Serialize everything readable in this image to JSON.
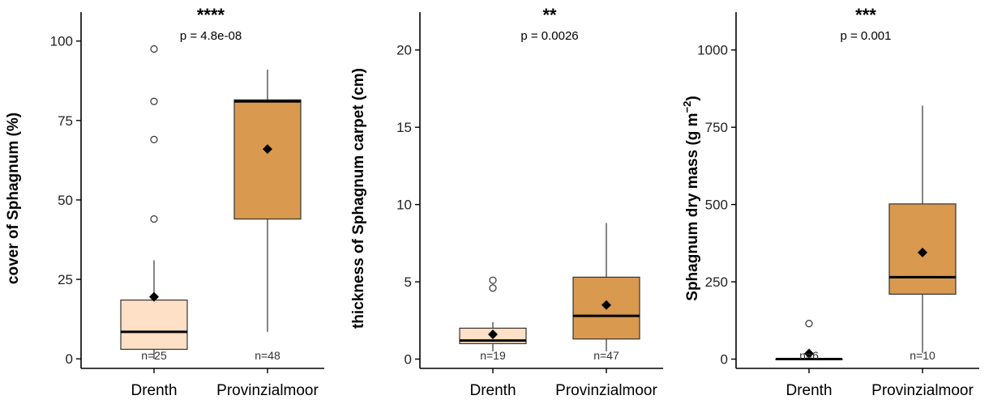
{
  "colors": {
    "drenth": "#fde0c5",
    "provinzialmoor": "#d9994f",
    "stroke": "#333333",
    "median": "#000000"
  },
  "chart_data": [
    {
      "type": "box",
      "ylabel": "cover of Sphagnum (%)",
      "ylabel_parts": [
        "cover of Sphagnum (%)"
      ],
      "ylim": [
        -3,
        104
      ],
      "yticks": [
        0,
        25,
        50,
        75,
        100
      ],
      "significance": "****",
      "p_label": "p = 4.8e-08",
      "categories": [
        "Drenth",
        "Provinzialmoor"
      ],
      "boxes": [
        {
          "name": "Drenth",
          "color_key": "drenth",
          "q1": 3,
          "median": 8.5,
          "q3": 18.5,
          "whisker_low": 0,
          "whisker_high": 31,
          "mean": 19.5,
          "outliers": [
            44,
            69,
            81,
            97.5
          ],
          "n_label": "n=25"
        },
        {
          "name": "Provinzialmoor",
          "color_key": "provinzialmoor",
          "q1": 44,
          "median": 81,
          "q3": 81.5,
          "whisker_low": 8.5,
          "whisker_high": 91,
          "mean": 66,
          "outliers": [],
          "n_label": "n=48"
        }
      ]
    },
    {
      "type": "box",
      "ylabel": "thickness of Sphagnum carpet (cm)",
      "ylabel_parts": [
        "thickness of Sphagnum carpet (cm)"
      ],
      "ylim": [
        -0.6,
        21.4
      ],
      "yticks": [
        0,
        5,
        10,
        15,
        20
      ],
      "significance": "**",
      "p_label": "p = 0.0026",
      "categories": [
        "Drenth",
        "Provinzialmoor"
      ],
      "boxes": [
        {
          "name": "Drenth",
          "color_key": "drenth",
          "q1": 1,
          "median": 1.2,
          "q3": 2,
          "whisker_low": 0.5,
          "whisker_high": 2.4,
          "mean": 1.6,
          "outliers": [
            4.6,
            5.1
          ],
          "n_label": "n=19"
        },
        {
          "name": "Provinzialmoor",
          "color_key": "provinzialmoor",
          "q1": 1.3,
          "median": 2.8,
          "q3": 5.3,
          "whisker_low": 0.5,
          "whisker_high": 8.8,
          "mean": 3.5,
          "outliers": [],
          "n_label": "n=47"
        }
      ]
    },
    {
      "type": "box",
      "ylabel": "Sphagnum dry mass (g m−2)",
      "ylabel_parts": [
        "Sphagnum dry mass (g m",
        "−2",
        ")"
      ],
      "ylim": [
        -30,
        1070
      ],
      "yticks": [
        0,
        250,
        500,
        750,
        1000
      ],
      "significance": "***",
      "p_label": "p = 0.001",
      "categories": [
        "Drenth",
        "Provinzialmoor"
      ],
      "boxes": [
        {
          "name": "Drenth",
          "color_key": "drenth",
          "q1": 0,
          "median": 0,
          "q3": 0,
          "whisker_low": 0,
          "whisker_high": 0,
          "mean": 18,
          "outliers": [
            115
          ],
          "n_label": "n=6"
        },
        {
          "name": "Provinzialmoor",
          "color_key": "provinzialmoor",
          "q1": 210,
          "median": 265,
          "q3": 502,
          "whisker_low": 20,
          "whisker_high": 820,
          "mean": 345,
          "outliers": [],
          "n_label": "n=10"
        }
      ]
    }
  ]
}
